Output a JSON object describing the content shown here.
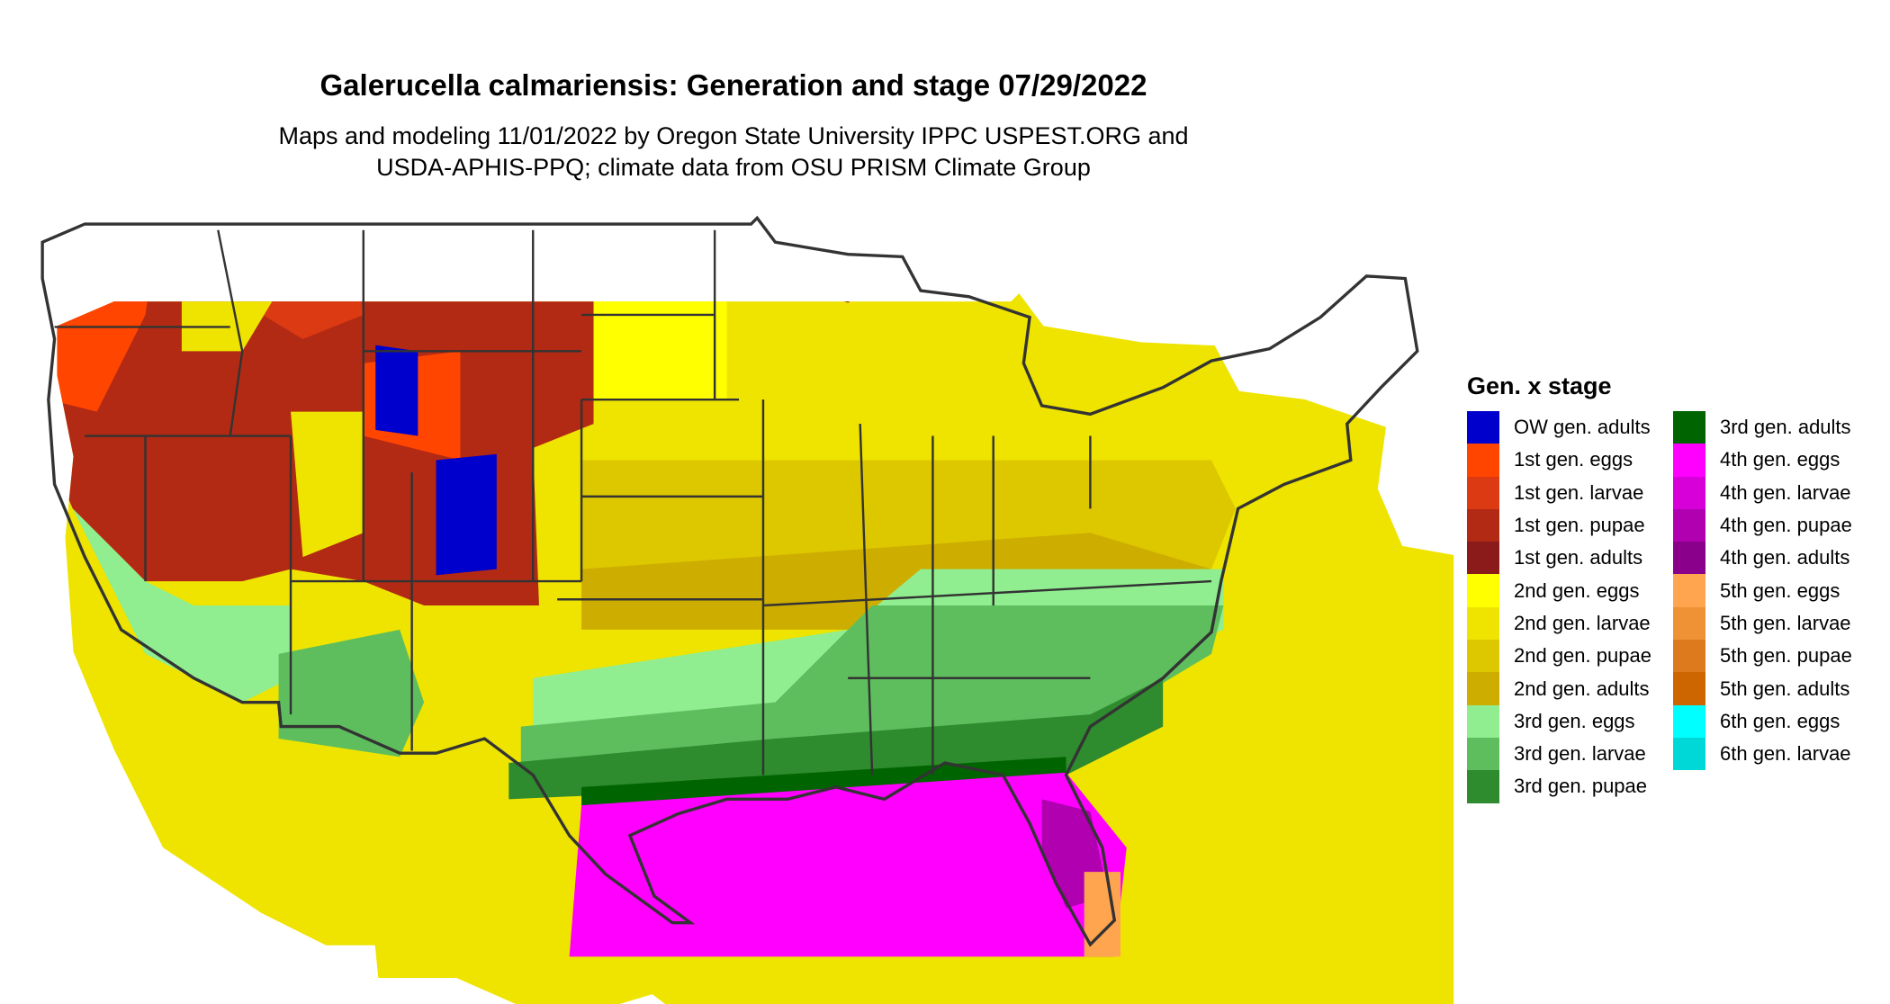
{
  "title": "Galerucella calmariensis: Generation and stage 07/29/2022",
  "subtitle_lines": [
    "Maps and modeling 11/01/2022 by Oregon State University IPPC USPEST.ORG and",
    "USDA-APHIS-PPQ; climate data from OSU PRISM Climate Group"
  ],
  "legend": {
    "title": "Gen. x stage",
    "columns": [
      [
        {
          "label": "OW gen. adults",
          "color": "#0000cd"
        },
        {
          "label": "1st gen. eggs",
          "color": "#ff4500"
        },
        {
          "label": "1st gen. larvae",
          "color": "#dc3a12"
        },
        {
          "label": "1st gen. pupae",
          "color": "#b22a14"
        },
        {
          "label": "1st gen. adults",
          "color": "#8b1a1a"
        },
        {
          "label": "2nd gen. eggs",
          "color": "#ffff00"
        },
        {
          "label": "2nd gen. larvae",
          "color": "#eee400"
        },
        {
          "label": "2nd gen. pupae",
          "color": "#ddc800"
        },
        {
          "label": "2nd gen. adults",
          "color": "#cdad00"
        },
        {
          "label": "3rd gen. eggs",
          "color": "#90ee90"
        },
        {
          "label": "3rd gen. larvae",
          "color": "#5ebe5e"
        },
        {
          "label": "3rd gen. pupae",
          "color": "#2e8b2e"
        }
      ],
      [
        {
          "label": "3rd gen. adults",
          "color": "#006400"
        },
        {
          "label": "4th gen. eggs",
          "color": "#ff00ff"
        },
        {
          "label": "4th gen. larvae",
          "color": "#d800d8"
        },
        {
          "label": "4th gen. pupae",
          "color": "#b000b0"
        },
        {
          "label": "4th gen. adults",
          "color": "#8b008b"
        },
        {
          "label": "5th gen. eggs",
          "color": "#ffa54f"
        },
        {
          "label": "5th gen. larvae",
          "color": "#ee9235"
        },
        {
          "label": "5th gen. pupae",
          "color": "#dd7a1e"
        },
        {
          "label": "5th gen. adults",
          "color": "#cd6600"
        },
        {
          "label": "6th gen. eggs",
          "color": "#00ffff"
        },
        {
          "label": "6th gen. larvae",
          "color": "#00d8d8"
        }
      ]
    ]
  }
}
